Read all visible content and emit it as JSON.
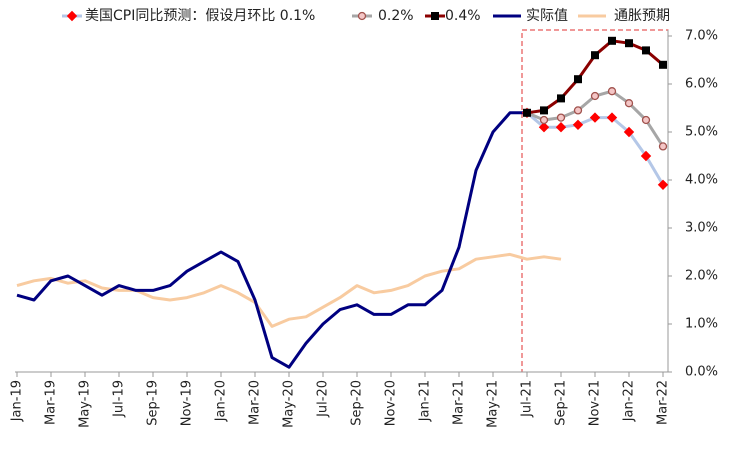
{
  "chart_data": {
    "type": "line",
    "categories": [
      "Jan-19",
      null,
      "Mar-19",
      null,
      "May-19",
      null,
      "Jul-19",
      null,
      "Sep-19",
      null,
      "Nov-19",
      null,
      "Jan-20",
      null,
      "Mar-20",
      null,
      "May-20",
      null,
      "Jul-20",
      null,
      "Sep-20",
      null,
      "Nov-20",
      null,
      "Jan-21",
      null,
      "Mar-21",
      null,
      "May-21",
      null,
      "Jul-21",
      null,
      "Sep-21",
      null,
      "Nov-21",
      null,
      "Jan-22",
      null,
      "Mar-22"
    ],
    "ylim": [
      0,
      7.0
    ],
    "yticks": [
      {
        "value": 0,
        "label": "0.0%"
      },
      {
        "value": 1,
        "label": "1.0%"
      },
      {
        "value": 2,
        "label": "2.0%"
      },
      {
        "value": 3,
        "label": "3.0%"
      },
      {
        "value": 4,
        "label": "4.0%"
      },
      {
        "value": 5,
        "label": "5.0%"
      },
      {
        "value": 6,
        "label": "6.0%"
      },
      {
        "value": 7,
        "label": "7.0%"
      }
    ],
    "y_axis_side": "right",
    "grid": false,
    "series": [
      {
        "name": "美国CPI同比预测：假设月环比 0.1%",
        "color": "#b4c7e7",
        "marker": "diamond",
        "marker_color": "#ff0000",
        "marker_edge": "#ff0000",
        "values": [
          null,
          null,
          null,
          null,
          null,
          null,
          null,
          null,
          null,
          null,
          null,
          null,
          null,
          null,
          null,
          null,
          null,
          null,
          null,
          null,
          null,
          null,
          null,
          null,
          null,
          null,
          null,
          null,
          null,
          null,
          5.4,
          5.1,
          5.1,
          5.15,
          5.3,
          5.3,
          5.0,
          4.5,
          3.9
        ]
      },
      {
        "name": "0.2%",
        "color": "#a6a6a6",
        "marker": "circle",
        "marker_color": "#f4c6c6",
        "marker_edge": "#a0524d",
        "values": [
          null,
          null,
          null,
          null,
          null,
          null,
          null,
          null,
          null,
          null,
          null,
          null,
          null,
          null,
          null,
          null,
          null,
          null,
          null,
          null,
          null,
          null,
          null,
          null,
          null,
          null,
          null,
          null,
          null,
          null,
          5.4,
          5.25,
          5.3,
          5.45,
          5.75,
          5.85,
          5.6,
          5.25,
          4.7
        ]
      },
      {
        "name": "0.4%",
        "color": "#8b0000",
        "marker": "square",
        "marker_color": "#000000",
        "marker_edge": "#000000",
        "values": [
          null,
          null,
          null,
          null,
          null,
          null,
          null,
          null,
          null,
          null,
          null,
          null,
          null,
          null,
          null,
          null,
          null,
          null,
          null,
          null,
          null,
          null,
          null,
          null,
          null,
          null,
          null,
          null,
          null,
          null,
          5.4,
          5.45,
          5.7,
          6.1,
          6.6,
          6.9,
          6.85,
          6.7,
          6.4
        ]
      },
      {
        "name": "实际值",
        "color": "#000080",
        "values": [
          1.6,
          1.5,
          1.9,
          2.0,
          1.8,
          1.6,
          1.8,
          1.7,
          1.7,
          1.8,
          2.1,
          2.3,
          2.5,
          2.3,
          1.5,
          0.3,
          0.1,
          0.6,
          1.0,
          1.3,
          1.4,
          1.2,
          1.2,
          1.4,
          1.4,
          1.7,
          2.6,
          4.2,
          5.0,
          5.4,
          5.4,
          null,
          null,
          null,
          null,
          null,
          null,
          null,
          null
        ]
      },
      {
        "name": "通胀预期",
        "color": "#f8cba0",
        "values": [
          1.8,
          1.9,
          1.95,
          1.85,
          1.9,
          1.75,
          1.7,
          1.7,
          1.55,
          1.5,
          1.55,
          1.65,
          1.8,
          1.65,
          1.45,
          0.95,
          1.1,
          1.15,
          1.35,
          1.55,
          1.8,
          1.65,
          1.7,
          1.8,
          2.0,
          2.1,
          2.15,
          2.35,
          2.4,
          2.45,
          2.35,
          2.4,
          2.35,
          null,
          null,
          null,
          null,
          null,
          null
        ]
      }
    ]
  }
}
